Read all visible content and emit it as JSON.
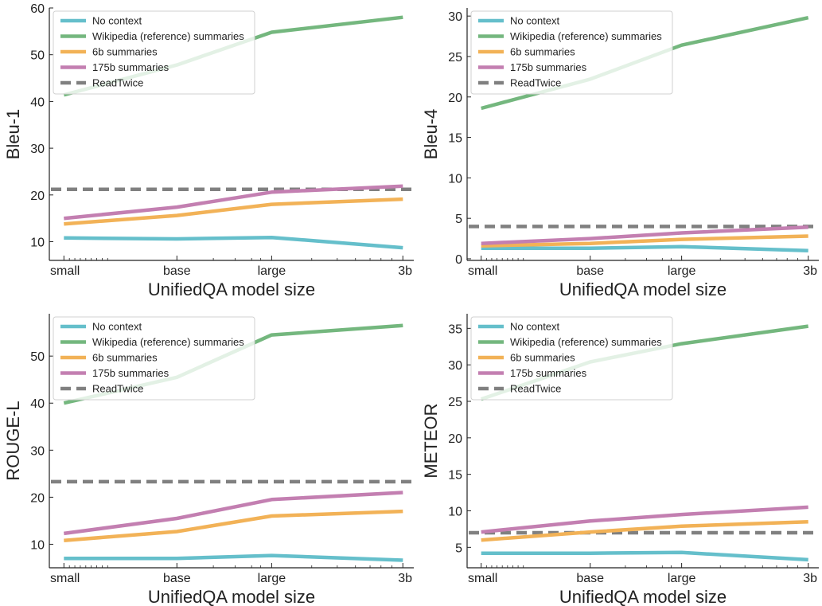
{
  "figure": {
    "background": "#ffffff"
  },
  "colors": {
    "No context": "#65bfcb",
    "Wikipedia (reference) summaries": "#74b77e",
    "6b summaries": "#f2b257",
    "175b summaries": "#c37fb1",
    "ReadTwice": "#808080"
  },
  "chart_data": [
    {
      "type": "line",
      "x": [
        "small",
        "base",
        "large",
        "3b"
      ],
      "xscale": "log",
      "xlabel": "UnifiedQA model size",
      "ylabel": "Bleu-1",
      "ylim": [
        6,
        60
      ],
      "yticks": [
        10,
        20,
        30,
        40,
        50,
        60
      ],
      "grid": false,
      "legend": "top-left",
      "series": [
        {
          "name": "No context",
          "values": [
            10.8,
            10.6,
            10.9,
            8.7
          ]
        },
        {
          "name": "Wikipedia (reference) summaries",
          "values": [
            41.4,
            47.8,
            54.8,
            58.0
          ]
        },
        {
          "name": "6b summaries",
          "values": [
            13.8,
            15.6,
            18.0,
            19.1
          ]
        },
        {
          "name": "175b summaries",
          "values": [
            15.0,
            17.4,
            20.6,
            21.9
          ]
        }
      ],
      "reference": {
        "name": "ReadTwice",
        "value": 21.2,
        "style": "dashed"
      }
    },
    {
      "type": "line",
      "x": [
        "small",
        "base",
        "large",
        "3b"
      ],
      "xscale": "log",
      "xlabel": "UnifiedQA model size",
      "ylabel": "Bleu-4",
      "ylim": [
        -0.2,
        31
      ],
      "yticks": [
        0,
        5,
        10,
        15,
        20,
        25,
        30
      ],
      "grid": false,
      "legend": "top-left",
      "series": [
        {
          "name": "No context",
          "values": [
            1.3,
            1.3,
            1.5,
            1.0
          ]
        },
        {
          "name": "Wikipedia (reference) summaries",
          "values": [
            18.6,
            22.2,
            26.4,
            29.8
          ]
        },
        {
          "name": "6b summaries",
          "values": [
            1.6,
            1.9,
            2.4,
            2.8
          ]
        },
        {
          "name": "175b summaries",
          "values": [
            1.9,
            2.5,
            3.2,
            3.9
          ]
        }
      ],
      "reference": {
        "name": "ReadTwice",
        "value": 4.0,
        "style": "dashed"
      }
    },
    {
      "type": "line",
      "x": [
        "small",
        "base",
        "large",
        "3b"
      ],
      "xscale": "log",
      "xlabel": "UnifiedQA model size",
      "ylabel": "ROUGE-L",
      "ylim": [
        5,
        59
      ],
      "yticks": [
        10,
        20,
        30,
        40,
        50
      ],
      "grid": false,
      "legend": "top-left",
      "series": [
        {
          "name": "No context",
          "values": [
            7.0,
            7.0,
            7.6,
            6.6
          ]
        },
        {
          "name": "Wikipedia (reference) summaries",
          "values": [
            40.0,
            45.5,
            54.5,
            56.5
          ]
        },
        {
          "name": "6b summaries",
          "values": [
            10.8,
            12.7,
            16.0,
            17.0
          ]
        },
        {
          "name": "175b summaries",
          "values": [
            12.3,
            15.5,
            19.5,
            21.0
          ]
        }
      ],
      "reference": {
        "name": "ReadTwice",
        "value": 23.3,
        "style": "dashed"
      }
    },
    {
      "type": "line",
      "x": [
        "small",
        "base",
        "large",
        "3b"
      ],
      "xscale": "log",
      "xlabel": "UnifiedQA model size",
      "ylabel": "METEOR",
      "ylim": [
        2.2,
        37
      ],
      "yticks": [
        5,
        10,
        15,
        20,
        25,
        30,
        35
      ],
      "grid": false,
      "legend": "top-left",
      "series": [
        {
          "name": "No context",
          "values": [
            4.2,
            4.2,
            4.3,
            3.3
          ]
        },
        {
          "name": "Wikipedia (reference) summaries",
          "values": [
            25.3,
            30.4,
            32.9,
            35.3
          ]
        },
        {
          "name": "6b summaries",
          "values": [
            6.0,
            7.1,
            7.9,
            8.5
          ]
        },
        {
          "name": "175b summaries",
          "values": [
            7.1,
            8.6,
            9.5,
            10.5
          ]
        }
      ],
      "reference": {
        "name": "ReadTwice",
        "value": 7.0,
        "style": "dashed"
      }
    }
  ]
}
